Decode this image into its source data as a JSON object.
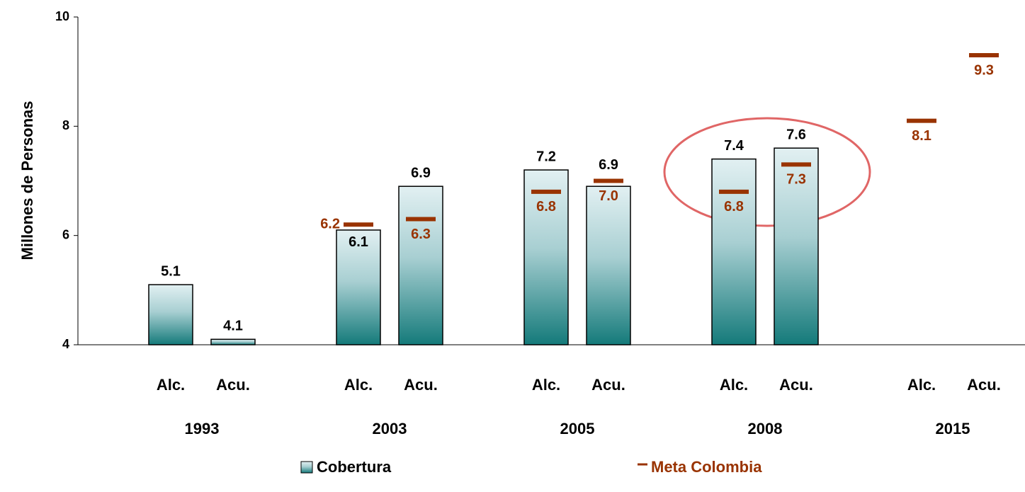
{
  "chart_data": {
    "type": "bar",
    "y_label": "Millones de Personas",
    "categories": [
      "Alc.",
      "Acu.",
      "Alc.",
      "Acu.",
      "Alc.",
      "Acu.",
      "Alc.",
      "Acu.",
      "Alc.",
      "Acu."
    ],
    "groups": [
      "1993",
      "2003",
      "2005",
      "2008",
      "2015"
    ],
    "series": [
      {
        "name": "Cobertura",
        "color": "#147a7a",
        "values": [
          5.1,
          4.1,
          6.1,
          6.9,
          7.2,
          6.9,
          7.4,
          7.6,
          null,
          null
        ]
      },
      {
        "name": "Meta Colombia",
        "color": "#993300",
        "values": [
          null,
          null,
          6.2,
          6.3,
          6.8,
          7.0,
          6.8,
          7.3,
          8.1,
          9.3
        ],
        "value_labels": [
          null,
          null,
          "6.2",
          "6.3",
          "6.8",
          "7.0",
          "6.8",
          "7.3",
          "8.1",
          "9.3"
        ]
      }
    ],
    "ylim": [
      4,
      10
    ],
    "yticks": [
      4,
      6,
      8,
      10
    ]
  }
}
